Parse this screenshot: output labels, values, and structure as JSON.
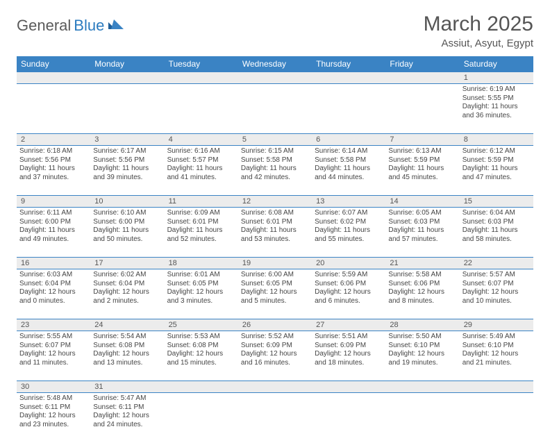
{
  "brand": {
    "general": "General",
    "blue": "Blue"
  },
  "title": "March 2025",
  "location": "Assiut, Asyut, Egypt",
  "colors": {
    "header_bg": "#3a83c4",
    "header_text": "#ffffff",
    "daynum_bg": "#ececec",
    "border": "#3a83c4",
    "body_text": "#444444",
    "title_text": "#555555",
    "logo_gray": "#5a5a5a",
    "logo_blue": "#2b7bbf",
    "page_bg": "#ffffff"
  },
  "weekdays": [
    "Sunday",
    "Monday",
    "Tuesday",
    "Wednesday",
    "Thursday",
    "Friday",
    "Saturday"
  ],
  "weeks": [
    {
      "nums": [
        "",
        "",
        "",
        "",
        "",
        "",
        "1"
      ],
      "cells": [
        null,
        null,
        null,
        null,
        null,
        null,
        {
          "sunrise": "Sunrise: 6:19 AM",
          "sunset": "Sunset: 5:55 PM",
          "day1": "Daylight: 11 hours",
          "day2": "and 36 minutes."
        }
      ]
    },
    {
      "nums": [
        "2",
        "3",
        "4",
        "5",
        "6",
        "7",
        "8"
      ],
      "cells": [
        {
          "sunrise": "Sunrise: 6:18 AM",
          "sunset": "Sunset: 5:56 PM",
          "day1": "Daylight: 11 hours",
          "day2": "and 37 minutes."
        },
        {
          "sunrise": "Sunrise: 6:17 AM",
          "sunset": "Sunset: 5:56 PM",
          "day1": "Daylight: 11 hours",
          "day2": "and 39 minutes."
        },
        {
          "sunrise": "Sunrise: 6:16 AM",
          "sunset": "Sunset: 5:57 PM",
          "day1": "Daylight: 11 hours",
          "day2": "and 41 minutes."
        },
        {
          "sunrise": "Sunrise: 6:15 AM",
          "sunset": "Sunset: 5:58 PM",
          "day1": "Daylight: 11 hours",
          "day2": "and 42 minutes."
        },
        {
          "sunrise": "Sunrise: 6:14 AM",
          "sunset": "Sunset: 5:58 PM",
          "day1": "Daylight: 11 hours",
          "day2": "and 44 minutes."
        },
        {
          "sunrise": "Sunrise: 6:13 AM",
          "sunset": "Sunset: 5:59 PM",
          "day1": "Daylight: 11 hours",
          "day2": "and 45 minutes."
        },
        {
          "sunrise": "Sunrise: 6:12 AM",
          "sunset": "Sunset: 5:59 PM",
          "day1": "Daylight: 11 hours",
          "day2": "and 47 minutes."
        }
      ]
    },
    {
      "nums": [
        "9",
        "10",
        "11",
        "12",
        "13",
        "14",
        "15"
      ],
      "cells": [
        {
          "sunrise": "Sunrise: 6:11 AM",
          "sunset": "Sunset: 6:00 PM",
          "day1": "Daylight: 11 hours",
          "day2": "and 49 minutes."
        },
        {
          "sunrise": "Sunrise: 6:10 AM",
          "sunset": "Sunset: 6:00 PM",
          "day1": "Daylight: 11 hours",
          "day2": "and 50 minutes."
        },
        {
          "sunrise": "Sunrise: 6:09 AM",
          "sunset": "Sunset: 6:01 PM",
          "day1": "Daylight: 11 hours",
          "day2": "and 52 minutes."
        },
        {
          "sunrise": "Sunrise: 6:08 AM",
          "sunset": "Sunset: 6:01 PM",
          "day1": "Daylight: 11 hours",
          "day2": "and 53 minutes."
        },
        {
          "sunrise": "Sunrise: 6:07 AM",
          "sunset": "Sunset: 6:02 PM",
          "day1": "Daylight: 11 hours",
          "day2": "and 55 minutes."
        },
        {
          "sunrise": "Sunrise: 6:05 AM",
          "sunset": "Sunset: 6:03 PM",
          "day1": "Daylight: 11 hours",
          "day2": "and 57 minutes."
        },
        {
          "sunrise": "Sunrise: 6:04 AM",
          "sunset": "Sunset: 6:03 PM",
          "day1": "Daylight: 11 hours",
          "day2": "and 58 minutes."
        }
      ]
    },
    {
      "nums": [
        "16",
        "17",
        "18",
        "19",
        "20",
        "21",
        "22"
      ],
      "cells": [
        {
          "sunrise": "Sunrise: 6:03 AM",
          "sunset": "Sunset: 6:04 PM",
          "day1": "Daylight: 12 hours",
          "day2": "and 0 minutes."
        },
        {
          "sunrise": "Sunrise: 6:02 AM",
          "sunset": "Sunset: 6:04 PM",
          "day1": "Daylight: 12 hours",
          "day2": "and 2 minutes."
        },
        {
          "sunrise": "Sunrise: 6:01 AM",
          "sunset": "Sunset: 6:05 PM",
          "day1": "Daylight: 12 hours",
          "day2": "and 3 minutes."
        },
        {
          "sunrise": "Sunrise: 6:00 AM",
          "sunset": "Sunset: 6:05 PM",
          "day1": "Daylight: 12 hours",
          "day2": "and 5 minutes."
        },
        {
          "sunrise": "Sunrise: 5:59 AM",
          "sunset": "Sunset: 6:06 PM",
          "day1": "Daylight: 12 hours",
          "day2": "and 6 minutes."
        },
        {
          "sunrise": "Sunrise: 5:58 AM",
          "sunset": "Sunset: 6:06 PM",
          "day1": "Daylight: 12 hours",
          "day2": "and 8 minutes."
        },
        {
          "sunrise": "Sunrise: 5:57 AM",
          "sunset": "Sunset: 6:07 PM",
          "day1": "Daylight: 12 hours",
          "day2": "and 10 minutes."
        }
      ]
    },
    {
      "nums": [
        "23",
        "24",
        "25",
        "26",
        "27",
        "28",
        "29"
      ],
      "cells": [
        {
          "sunrise": "Sunrise: 5:55 AM",
          "sunset": "Sunset: 6:07 PM",
          "day1": "Daylight: 12 hours",
          "day2": "and 11 minutes."
        },
        {
          "sunrise": "Sunrise: 5:54 AM",
          "sunset": "Sunset: 6:08 PM",
          "day1": "Daylight: 12 hours",
          "day2": "and 13 minutes."
        },
        {
          "sunrise": "Sunrise: 5:53 AM",
          "sunset": "Sunset: 6:08 PM",
          "day1": "Daylight: 12 hours",
          "day2": "and 15 minutes."
        },
        {
          "sunrise": "Sunrise: 5:52 AM",
          "sunset": "Sunset: 6:09 PM",
          "day1": "Daylight: 12 hours",
          "day2": "and 16 minutes."
        },
        {
          "sunrise": "Sunrise: 5:51 AM",
          "sunset": "Sunset: 6:09 PM",
          "day1": "Daylight: 12 hours",
          "day2": "and 18 minutes."
        },
        {
          "sunrise": "Sunrise: 5:50 AM",
          "sunset": "Sunset: 6:10 PM",
          "day1": "Daylight: 12 hours",
          "day2": "and 19 minutes."
        },
        {
          "sunrise": "Sunrise: 5:49 AM",
          "sunset": "Sunset: 6:10 PM",
          "day1": "Daylight: 12 hours",
          "day2": "and 21 minutes."
        }
      ]
    },
    {
      "nums": [
        "30",
        "31",
        "",
        "",
        "",
        "",
        ""
      ],
      "cells": [
        {
          "sunrise": "Sunrise: 5:48 AM",
          "sunset": "Sunset: 6:11 PM",
          "day1": "Daylight: 12 hours",
          "day2": "and 23 minutes."
        },
        {
          "sunrise": "Sunrise: 5:47 AM",
          "sunset": "Sunset: 6:11 PM",
          "day1": "Daylight: 12 hours",
          "day2": "and 24 minutes."
        },
        null,
        null,
        null,
        null,
        null
      ]
    }
  ]
}
